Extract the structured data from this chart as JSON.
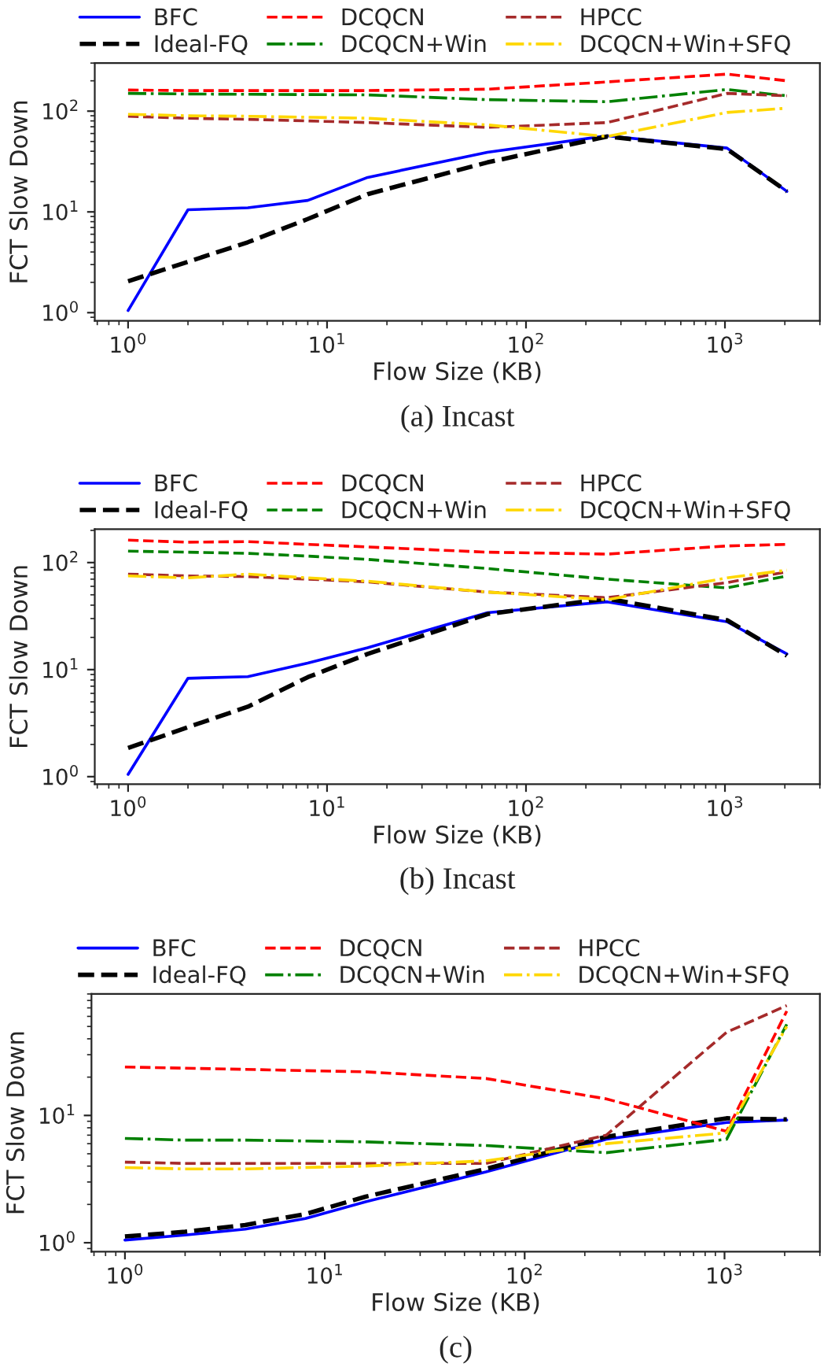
{
  "chart_data": [
    {
      "type": "line",
      "xlabel": "Flow Size (KB)",
      "ylabel": "FCT Slow Down",
      "log": "xy",
      "legend": "top",
      "grid": false,
      "x": [
        1,
        2,
        4,
        8,
        16,
        64,
        256,
        1024,
        2048
      ],
      "xlim": [
        0.68,
        3000
      ],
      "xticks": [
        {
          "value": 1,
          "label": "10$^{0}$"
        },
        {
          "value": 10,
          "label": "10$^{1}$"
        },
        {
          "value": 100,
          "label": "10$^{2}$"
        },
        {
          "value": 1000,
          "label": "10$^{3}$"
        }
      ],
      "ylim": [
        0.83,
        300
      ],
      "yticks": [
        {
          "value": 1,
          "label": "10$^{0}$"
        },
        {
          "value": 10,
          "label": "10$^{1}$"
        },
        {
          "value": 100,
          "label": "10$^{2}$"
        }
      ],
      "annotations": [
        "(a) Incast"
      ],
      "series": [
        {
          "name": "BFC",
          "color": "#0000ff",
          "line_style": "solid",
          "values": [
            1.05,
            10.5,
            11,
            13,
            22,
            39,
            57,
            43,
            16
          ]
        },
        {
          "name": "Ideal-FQ",
          "color": "#000000",
          "line_style": "dashed",
          "values": [
            2.05,
            3.2,
            5,
            8.5,
            15,
            31,
            56,
            42,
            16
          ]
        },
        {
          "name": "DCQCN",
          "color": "#ff0000",
          "line_style": "dashed",
          "values": [
            162,
            160,
            160,
            160,
            160,
            165,
            195,
            233,
            200
          ]
        },
        {
          "name": "DCQCN+Win",
          "color": "#008000",
          "line_style": "dashdot",
          "values": [
            150,
            148,
            147,
            146,
            145,
            130,
            124,
            164,
            142
          ]
        },
        {
          "name": "HPCC",
          "color": "#a52a2a",
          "line_style": "dashed",
          "values": [
            89,
            85,
            83,
            80,
            77,
            69,
            77,
            150,
            142
          ]
        },
        {
          "name": "DCQCN+Win+SFQ",
          "color": "#ffd700",
          "line_style": "dashdot",
          "values": [
            93,
            90,
            89,
            87,
            85,
            73,
            56,
            97,
            107
          ]
        }
      ]
    },
    {
      "type": "line",
      "xlabel": "Flow Size (KB)",
      "ylabel": "FCT Slow Down",
      "log": "xy",
      "legend": "top",
      "grid": false,
      "x": [
        1,
        2,
        4,
        8,
        16,
        64,
        256,
        1024,
        2048
      ],
      "xlim": [
        0.68,
        3000
      ],
      "xticks": [
        {
          "value": 1,
          "label": "10$^{0}$"
        },
        {
          "value": 10,
          "label": "10$^{1}$"
        },
        {
          "value": 100,
          "label": "10$^{2}$"
        },
        {
          "value": 1000,
          "label": "10$^{3}$"
        }
      ],
      "ylim": [
        0.85,
        205
      ],
      "yticks": [
        {
          "value": 1,
          "label": "10$^{0}$"
        },
        {
          "value": 10,
          "label": "10$^{1}$"
        },
        {
          "value": 100,
          "label": "10$^{2}$"
        }
      ],
      "annotations": [
        "(b) Incast"
      ],
      "series": [
        {
          "name": "BFC",
          "color": "#0000ff",
          "line_style": "solid",
          "values": [
            1.05,
            8.3,
            8.6,
            11.5,
            16,
            34,
            43,
            28,
            14
          ]
        },
        {
          "name": "Ideal-FQ",
          "color": "#000000",
          "line_style": "dashed",
          "values": [
            1.85,
            2.9,
            4.5,
            8.5,
            14,
            33,
            46,
            29,
            13.5
          ]
        },
        {
          "name": "DCQCN",
          "color": "#ff0000",
          "line_style": "dashed",
          "values": [
            162,
            155,
            157,
            148,
            140,
            125,
            120,
            143,
            148
          ]
        },
        {
          "name": "DCQCN+Win",
          "color": "#008000",
          "line_style": "dashed",
          "values": [
            128,
            125,
            122,
            115,
            107,
            88,
            70,
            58,
            75
          ]
        },
        {
          "name": "HPCC",
          "color": "#a52a2a",
          "line_style": "dashed",
          "values": [
            78,
            75,
            74,
            70,
            66,
            53,
            47,
            65,
            82
          ]
        },
        {
          "name": "DCQCN+Win+SFQ",
          "color": "#ffd700",
          "line_style": "dashdot",
          "values": [
            75,
            72,
            78,
            72,
            67,
            53,
            45,
            72,
            85
          ]
        }
      ]
    },
    {
      "type": "line",
      "xlabel": "Flow Size (KB)",
      "ylabel": "FCT Slow Down",
      "log": "xy",
      "legend": "top",
      "grid": false,
      "x": [
        1,
        2,
        4,
        8,
        16,
        64,
        256,
        1024,
        2048
      ],
      "xlim": [
        0.68,
        3000
      ],
      "xticks": [
        {
          "value": 1,
          "label": "10$^{0}$"
        },
        {
          "value": 10,
          "label": "10$^{1}$"
        },
        {
          "value": 100,
          "label": "10$^{2}$"
        },
        {
          "value": 1000,
          "label": "10$^{3}$"
        }
      ],
      "ylim": [
        0.85,
        90
      ],
      "yticks": [
        {
          "value": 1,
          "label": "10$^{0}$"
        },
        {
          "value": 10,
          "label": "10$^{1}$"
        }
      ],
      "annotations": [
        "(c)"
      ],
      "series": [
        {
          "name": "BFC",
          "color": "#0000ff",
          "line_style": "solid",
          "values": [
            1.05,
            1.15,
            1.28,
            1.55,
            2.1,
            3.6,
            6.5,
            8.8,
            9.2
          ]
        },
        {
          "name": "Ideal-FQ",
          "color": "#000000",
          "line_style": "dashed",
          "values": [
            1.12,
            1.22,
            1.38,
            1.68,
            2.3,
            3.8,
            6.8,
            9.5,
            9.3
          ]
        },
        {
          "name": "DCQCN",
          "color": "#ff0000",
          "line_style": "dashed",
          "values": [
            24,
            23.5,
            23,
            22.5,
            22,
            19.5,
            13.5,
            7.5,
            66
          ]
        },
        {
          "name": "DCQCN+Win",
          "color": "#008000",
          "line_style": "dashdot",
          "values": [
            6.6,
            6.4,
            6.4,
            6.3,
            6.2,
            5.8,
            5.1,
            6.5,
            52
          ]
        },
        {
          "name": "HPCC",
          "color": "#a52a2a",
          "line_style": "dashed",
          "values": [
            4.3,
            4.2,
            4.2,
            4.2,
            4.2,
            4.2,
            7,
            45,
            73
          ]
        },
        {
          "name": "DCQCN+Win+SFQ",
          "color": "#ffd700",
          "line_style": "dashdot",
          "values": [
            3.9,
            3.8,
            3.8,
            3.9,
            4.0,
            4.4,
            6.0,
            7.3,
            50
          ]
        }
      ]
    }
  ]
}
